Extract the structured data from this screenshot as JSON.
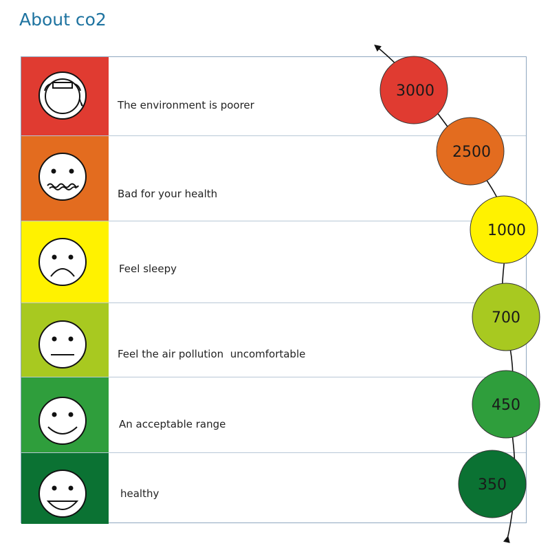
{
  "title": "About co2",
  "levels": [
    {
      "label": "The environment is poorer",
      "color": "#e03b31",
      "face": "gas-mask-face-icon",
      "value": "3000",
      "bubble_color": "#e03b31"
    },
    {
      "label": "Bad for your health",
      "color": "#e36c1f",
      "face": "sick-face-icon",
      "value": "2500",
      "bubble_color": "#e36c1f"
    },
    {
      "label": "Feel sleepy",
      "color": "#fff200",
      "face": "sad-face-icon",
      "value": "1000",
      "bubble_color": "#fff200"
    },
    {
      "label": "Feel the air pollution  uncomfortable",
      "color": "#a8c920",
      "face": "neutral-face-icon",
      "value": "700",
      "bubble_color": "#a8c920"
    },
    {
      "label": "An acceptable range",
      "color": "#2f9e3c",
      "face": "smile-face-icon",
      "value": "450",
      "bubble_color": "#2f9e3c"
    },
    {
      "label": "healthy",
      "color": "#0b7233",
      "face": "grin-face-icon",
      "value": "350",
      "bubble_color": "#0b7233"
    }
  ]
}
